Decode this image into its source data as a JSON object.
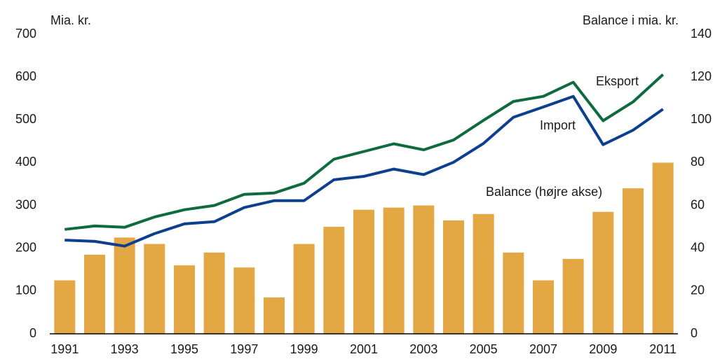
{
  "chart_data": {
    "type": "bar_line",
    "y_label": "Mia. kr.",
    "y2_label": "Balance i mia. kr.",
    "categories": [
      "1991",
      null,
      "1993",
      null,
      "1995",
      null,
      "1997",
      null,
      "1999",
      null,
      "2001",
      null,
      "2003",
      null,
      "2005",
      null,
      "2007",
      null,
      "2009",
      null,
      "2011"
    ],
    "ylim": [
      0,
      700
    ],
    "yticks": [
      0,
      100,
      200,
      300,
      400,
      500,
      600,
      700
    ],
    "y2lim": [
      0,
      140
    ],
    "y2ticks": [
      0,
      20,
      40,
      60,
      80,
      100,
      120,
      140
    ],
    "series": [
      {
        "name": "Balance (højre akse)",
        "type": "bar",
        "axis": "y2",
        "color": "#e3a843",
        "values": [
          25,
          37,
          45,
          42,
          32,
          38,
          31,
          17,
          42,
          50,
          58,
          59,
          60,
          53,
          56,
          38,
          25,
          35,
          57,
          68,
          80
        ]
      },
      {
        "name": "Eksport",
        "type": "line",
        "color": "#0e6b3d",
        "values": [
          244,
          252,
          249,
          273,
          290,
          300,
          326,
          329,
          352,
          408,
          426,
          444,
          430,
          453,
          499,
          543,
          555,
          588,
          498,
          542,
          606
        ]
      },
      {
        "name": "Import",
        "type": "line",
        "color": "#0d3f8f",
        "values": [
          219,
          216,
          205,
          234,
          257,
          262,
          295,
          311,
          311,
          360,
          368,
          385,
          372,
          401,
          445,
          506,
          530,
          555,
          442,
          476,
          525
        ]
      }
    ]
  }
}
